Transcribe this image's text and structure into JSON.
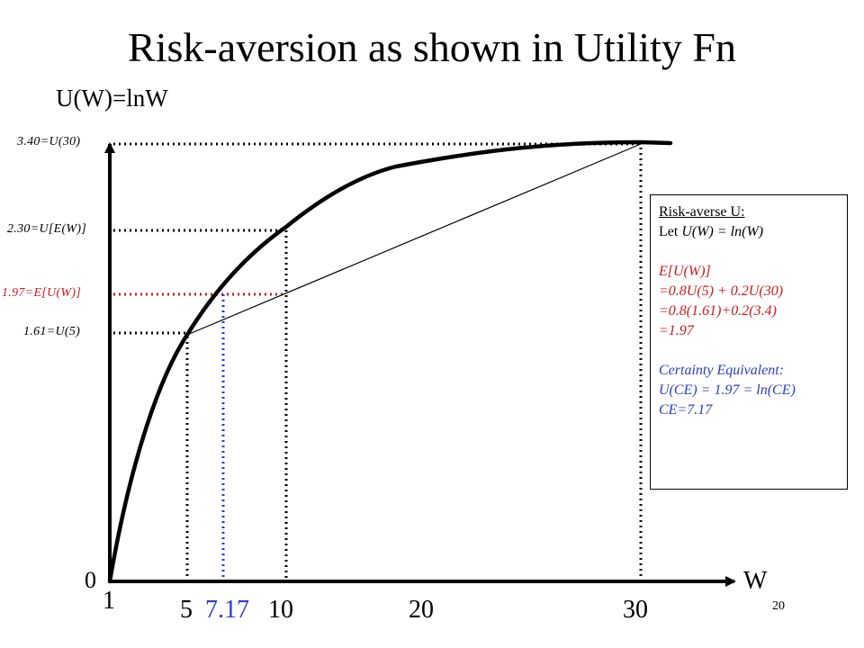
{
  "title": "Risk-aversion as shown in Utility Fn",
  "y_axis_label": "U(W)=lnW",
  "x_axis_label": "W",
  "origin_label": "0",
  "slide_number": "20",
  "y_labels": {
    "u30": "3.40=U(30)",
    "uew": "2.30=U[E(W)]",
    "euw": "1.97=E[U(W)]",
    "u5": "1.61=U(5)"
  },
  "x_labels": {
    "one": "1",
    "five": "5",
    "ce": "7.17",
    "ten": "10",
    "twenty": "20",
    "thirty": "30"
  },
  "info_box": {
    "heading": "Risk-averse U:",
    "let_prefix": "Let ",
    "let_formula": "U(W) = ln(W)",
    "eu_lines": [
      "E[U(W)]",
      "=0.8U(5) + 0.2U(30)",
      "=0.8(1.61)+0.2(3.4)",
      "=1.97"
    ],
    "ce_lines": [
      "Certainty Equivalent:",
      "U(CE) = 1.97 = ln(CE)",
      "CE=7.17"
    ]
  },
  "colors": {
    "red": "#cc1a1a",
    "blue": "#2a3fc4",
    "black": "#000000"
  }
}
